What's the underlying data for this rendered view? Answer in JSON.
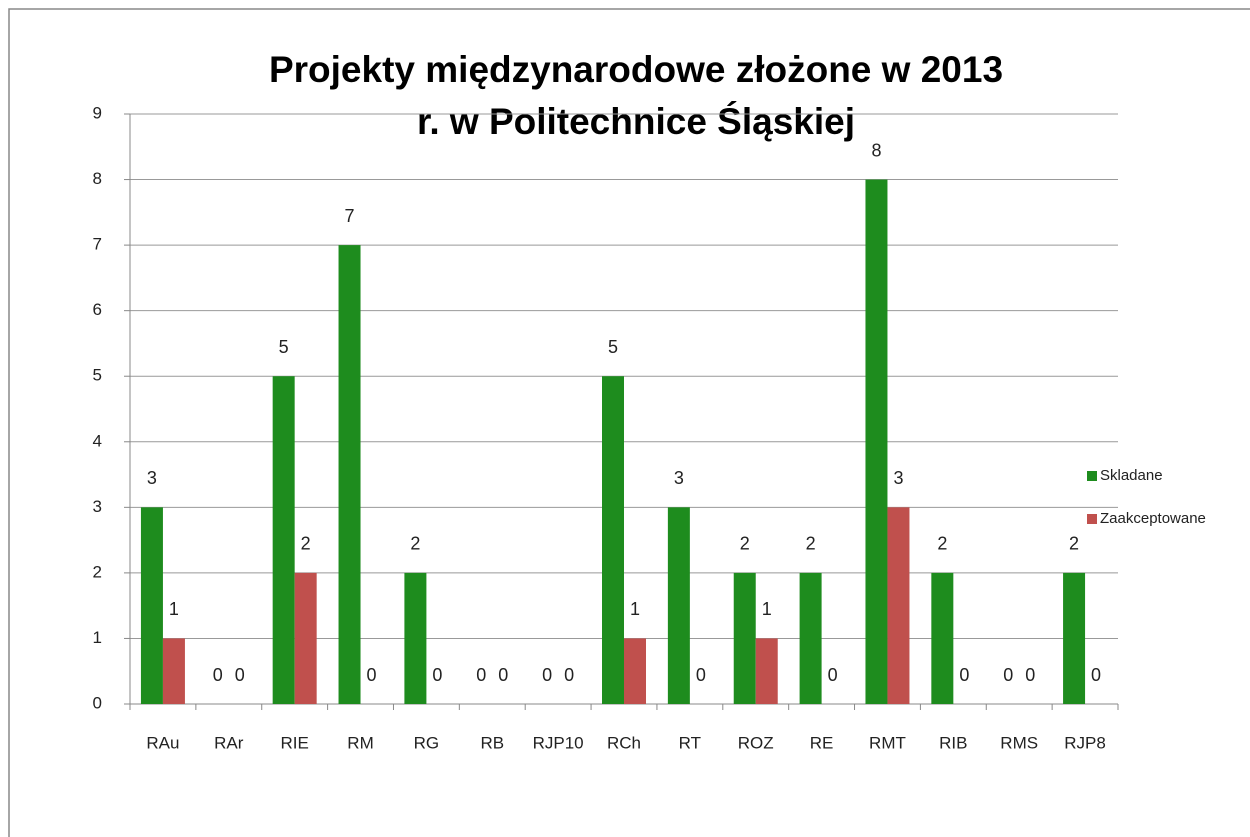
{
  "chart_data": {
    "type": "bar",
    "title": [
      "Projekty międzynarodowe złożone w 2013",
      "r. w Politechnice Śląskiej"
    ],
    "categories": [
      "RAu",
      "RAr",
      "RIE",
      "RM",
      "RG",
      "RB",
      "RJP10",
      "RCh",
      "RT",
      "ROZ",
      "RE",
      "RMT",
      "RIB",
      "RMS",
      "RJP8"
    ],
    "series": [
      {
        "name": "Skladane",
        "color": "#1e8c1e",
        "values": [
          3,
          0,
          5,
          7,
          2,
          0,
          0,
          5,
          3,
          2,
          2,
          8,
          2,
          0,
          2
        ]
      },
      {
        "name": "Zaakceptowane",
        "color": "#c0504d",
        "values": [
          1,
          0,
          2,
          0,
          0,
          0,
          0,
          1,
          0,
          1,
          0,
          3,
          0,
          0,
          0
        ]
      }
    ],
    "ylim": [
      0,
      9
    ],
    "yticks": [
      0,
      1,
      2,
      3,
      4,
      5,
      6,
      7,
      8,
      9
    ],
    "grid": true,
    "legend": "right"
  }
}
